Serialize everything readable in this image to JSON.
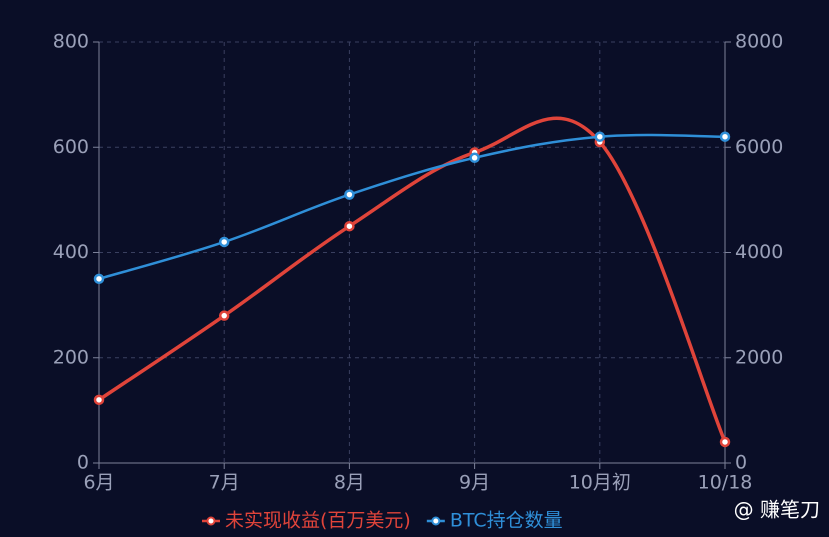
{
  "chart_data": {
    "type": "line",
    "categories": [
      "6月",
      "7月",
      "8月",
      "9月",
      "10月初",
      "10/18"
    ],
    "series": [
      {
        "name": "未实现收益(百万美元)",
        "color": "#e0443a",
        "values": [
          120,
          280,
          450,
          590,
          610,
          40
        ]
      },
      {
        "name": "BTC持仓数量",
        "color": "#2f8fd8",
        "axis": "y2",
        "values": [
          3500,
          4200,
          5100,
          5800,
          6200,
          6200
        ]
      }
    ],
    "ylim": [
      0,
      800
    ],
    "yticks": [
      0,
      200,
      400,
      600,
      800
    ],
    "y2lim": [
      0,
      8000
    ],
    "y2ticks": [
      0,
      2000,
      4000,
      6000,
      8000
    ],
    "grid": true,
    "legend": "bottom",
    "watermark": "@ 赚笔刀"
  }
}
